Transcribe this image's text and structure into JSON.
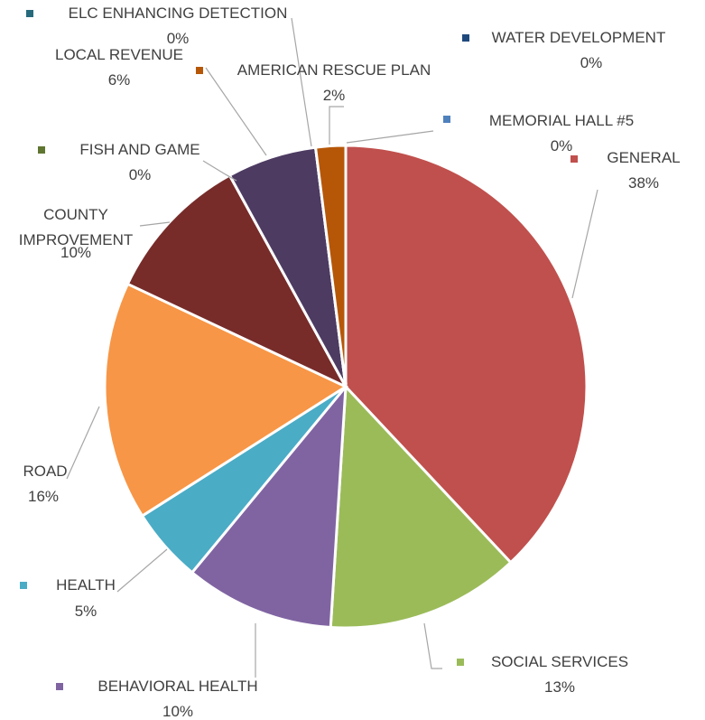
{
  "chart_data": {
    "type": "pie",
    "categories": [
      "GENERAL",
      "SOCIAL SERVICES",
      "BEHAVIORAL HEALTH",
      "HEALTH",
      "ROAD",
      "COUNTY IMPROVEMENT",
      "FISH AND GAME",
      "LOCAL REVENUE",
      "ELC ENHANCING DETECTION",
      "AMERICAN RESCUE PLAN",
      "WATER DEVELOPMENT",
      "MEMORIAL HALL #5"
    ],
    "values": [
      38,
      13,
      10,
      5,
      16,
      10,
      0,
      6,
      0,
      2,
      0,
      0
    ],
    "value_labels": [
      "38%",
      "13%",
      "10%",
      "5%",
      "16%",
      "10%",
      "0%",
      "6%",
      "0%",
      "2%",
      "0%",
      "0%"
    ],
    "colors": [
      "#c0504d",
      "#9bbb59",
      "#8064a2",
      "#4bacc6",
      "#f79646",
      "#772c2a",
      "#5f7530",
      "#4d3b62",
      "#276a7c",
      "#b65708",
      "#1f497d",
      "#4f81bd"
    ]
  }
}
